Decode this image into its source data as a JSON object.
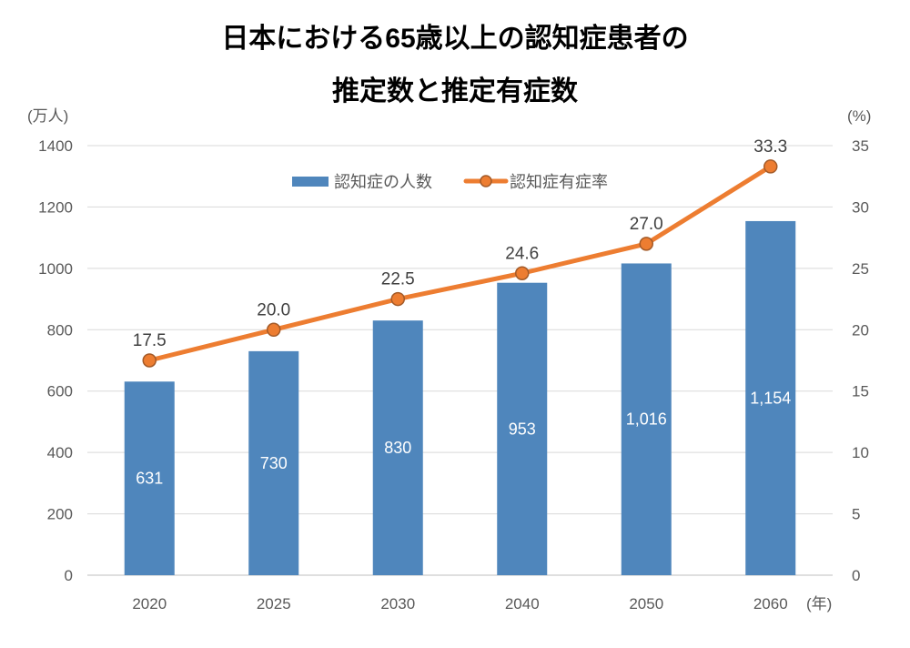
{
  "chart_data": {
    "type": "bar+line",
    "title_lines": [
      "日本における65歳以上の認知症患者の",
      "推定数と推定有症数"
    ],
    "categories": [
      "2020",
      "2025",
      "2030",
      "2040",
      "2050",
      "2060"
    ],
    "x_unit": "(年)",
    "y_left": {
      "unit": "(万人)",
      "range": [
        0,
        1400
      ],
      "ticks": [
        0,
        200,
        400,
        600,
        800,
        1000,
        1200,
        1400
      ]
    },
    "y_right": {
      "unit": "(%)",
      "range": [
        0,
        35
      ],
      "ticks": [
        0,
        5,
        10,
        15,
        20,
        25,
        30,
        35
      ]
    },
    "grid": true,
    "legend_position": "top-center",
    "series": [
      {
        "name": "認知症の人数",
        "kind": "bar",
        "axis": "left",
        "color": "#4f86bc",
        "values": [
          631,
          730,
          830,
          953,
          1016,
          1154
        ],
        "labels": [
          "631",
          "730",
          "830",
          "953",
          "1,016",
          "1,154"
        ]
      },
      {
        "name": "認知症有症率",
        "kind": "line",
        "axis": "right",
        "color": "#ed7d31",
        "values": [
          17.5,
          20.0,
          22.5,
          24.6,
          27.0,
          33.3
        ],
        "labels": [
          "17.5",
          "20.0",
          "22.5",
          "24.6",
          "27.0",
          "33.3"
        ]
      }
    ]
  }
}
